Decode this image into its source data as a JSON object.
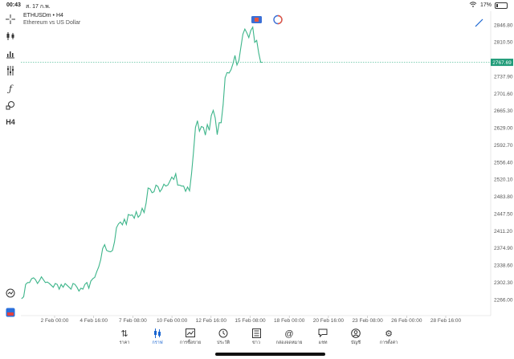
{
  "status": {
    "time": "00:43",
    "date": "ส. 17 ก.พ.",
    "battery": "17%"
  },
  "chart": {
    "symbol": "ETHUSDm • H4",
    "description": "Ethereum vs US Dollar",
    "current_price": "2767.69",
    "line_color": "#3db58a",
    "price_ticks": [
      "2846.80",
      "2810.50",
      "2737.90",
      "2701.60",
      "2665.30",
      "2629.00",
      "2592.70",
      "2556.40",
      "2520.10",
      "2483.80",
      "2447.50",
      "2411.20",
      "2374.90",
      "2338.60",
      "2302.30",
      "2266.00"
    ],
    "time_ticks": [
      "2 Feb 00:00",
      "4 Feb 16:00",
      "7 Feb 08:00",
      "10 Feb 00:00",
      "12 Feb 16:00",
      "15 Feb 08:00",
      "18 Feb 00:00",
      "20 Feb 16:00",
      "23 Feb 08:00",
      "26 Feb 00:00",
      "28 Feb 16:00"
    ]
  },
  "chart_data": {
    "type": "line",
    "ylim": [
      2255,
      2870
    ],
    "y": [
      2268,
      2272,
      2298,
      2302,
      2302,
      2310,
      2312,
      2308,
      2300,
      2306,
      2314,
      2308,
      2302,
      2303,
      2300,
      2296,
      2292,
      2300,
      2298,
      2288,
      2298,
      2292,
      2300,
      2296,
      2292,
      2288,
      2300,
      2298,
      2292,
      2284,
      2290,
      2288,
      2298,
      2302,
      2290,
      2305,
      2310,
      2313,
      2325,
      2335,
      2350,
      2374,
      2382,
      2370,
      2368,
      2367,
      2370,
      2388,
      2418,
      2426,
      2430,
      2424,
      2436,
      2425,
      2446,
      2444,
      2445,
      2438,
      2452,
      2440,
      2445,
      2459,
      2450,
      2470,
      2502,
      2500,
      2492,
      2494,
      2508,
      2505,
      2494,
      2500,
      2510,
      2506,
      2508,
      2516,
      2525,
      2520,
      2532,
      2508,
      2508,
      2506,
      2506,
      2495,
      2504,
      2496,
      2532,
      2578,
      2630,
      2644,
      2622,
      2632,
      2630,
      2614,
      2636,
      2624,
      2655,
      2666,
      2650,
      2615,
      2640,
      2640,
      2678,
      2735,
      2746,
      2745,
      2752,
      2765,
      2782,
      2762,
      2772,
      2800,
      2827,
      2838,
      2830,
      2820,
      2835,
      2842,
      2810,
      2814,
      2788,
      2768,
      2767.69
    ]
  },
  "tabs": [
    {
      "label": "ราคา",
      "icon": "quotes-icon"
    },
    {
      "label": "กราฟ",
      "icon": "chart-icon"
    },
    {
      "label": "การซื้อขาย",
      "icon": "trade-icon"
    },
    {
      "label": "ประวัติ",
      "icon": "history-icon"
    },
    {
      "label": "ข่าว",
      "icon": "news-icon"
    },
    {
      "label": "กล่องจดหมาย",
      "icon": "mailbox-icon"
    },
    {
      "label": "แชท",
      "icon": "chat-icon"
    },
    {
      "label": "บัญชี",
      "icon": "account-icon"
    },
    {
      "label": "การตั้งค่า",
      "icon": "settings-icon"
    }
  ]
}
